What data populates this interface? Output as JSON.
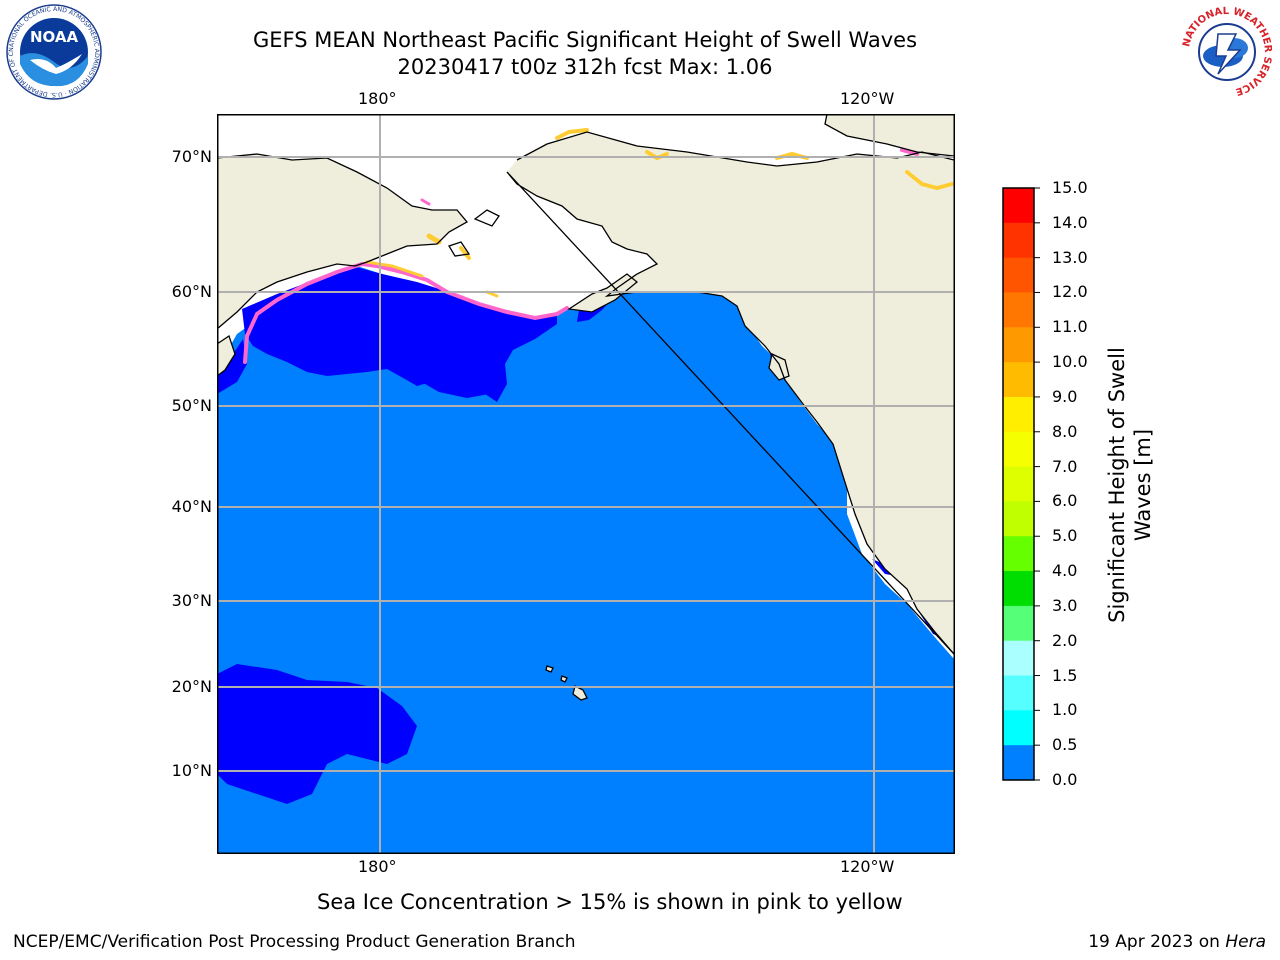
{
  "title_line1": "GEFS MEAN Northeast Pacific Significant Height of Swell Waves",
  "title_line2": "20230417 t00z 312h fcst   Max: 1.06",
  "lon_ticks": [
    "180°",
    "120°W"
  ],
  "lat_ticks": [
    "70°N",
    "60°N",
    "50°N",
    "40°N",
    "30°N",
    "20°N",
    "10°N"
  ],
  "colorbar": {
    "title": "Significant Height of Swell\nWaves [m]",
    "levels": [
      "15.0",
      "14.0",
      "13.0",
      "12.0",
      "11.0",
      "10.0",
      "9.0",
      "8.0",
      "7.0",
      "6.0",
      "5.0",
      "4.0",
      "3.0",
      "2.0",
      "1.5",
      "1.0",
      "0.5",
      "0.0"
    ],
    "colors": [
      "#ff0000",
      "#ff3300",
      "#ff5500",
      "#ff7700",
      "#ff9900",
      "#ffbb00",
      "#ffee00",
      "#f5ff00",
      "#ddff00",
      "#c0ff00",
      "#66ff00",
      "#00dd00",
      "#55ff77",
      "#aaffff",
      "#55ffff",
      "#00ffff",
      "#0080ff",
      "#0000ff"
    ]
  },
  "colors": {
    "ocean": "#0080ff",
    "swell_low": "#0000ff",
    "land": "#efeedc",
    "ice_edge": "#ff66cc",
    "ice_high": "#ffcc33"
  },
  "caption": "Sea Ice Concentration > 15% is shown in pink to yellow",
  "footer_left": "NCEP/EMC/Verification Post Processing Product Generation Branch",
  "footer_right_prefix": "19 Apr 2023 on ",
  "footer_right_host": "Hera",
  "logo_left_text": "NOAA",
  "logo_left_ring": "NATIONAL OCEANIC AND ATMOSPHERIC ADMINISTRATION · U.S. DEPARTMENT OF COMMERCE",
  "logo_right_ring": "NATIONAL WEATHER SERVICE"
}
